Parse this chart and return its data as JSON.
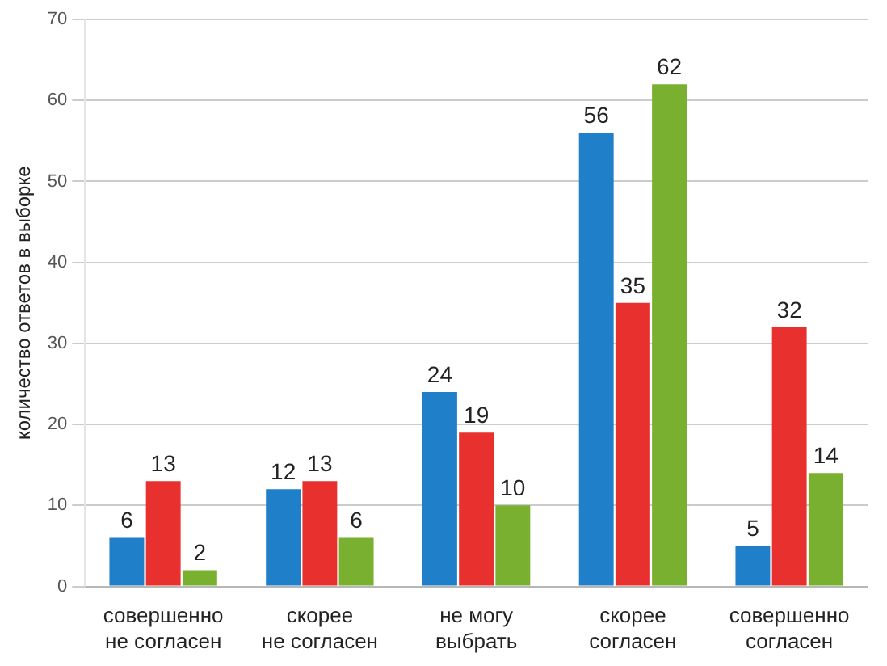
{
  "chart_data": {
    "type": "bar",
    "ylabel": "количество ответов в выборке",
    "categories": [
      "совершенно\nне согласен",
      "скорее\nне согласен",
      "не могу\nвыбрать",
      "скорее\nсогласен",
      "совершенно\nсогласен"
    ],
    "series": [
      {
        "color": "#1f7fc8",
        "values": [
          6,
          12,
          24,
          56,
          5
        ]
      },
      {
        "color": "#e8312f",
        "values": [
          13,
          13,
          19,
          35,
          32
        ]
      },
      {
        "color": "#7ab030",
        "values": [
          2,
          6,
          10,
          62,
          14
        ]
      }
    ],
    "ylim": [
      0,
      70
    ],
    "yticks": [
      0,
      10,
      20,
      30,
      40,
      50,
      60,
      70
    ],
    "grid": "y",
    "data_labels": true,
    "legend": false
  }
}
